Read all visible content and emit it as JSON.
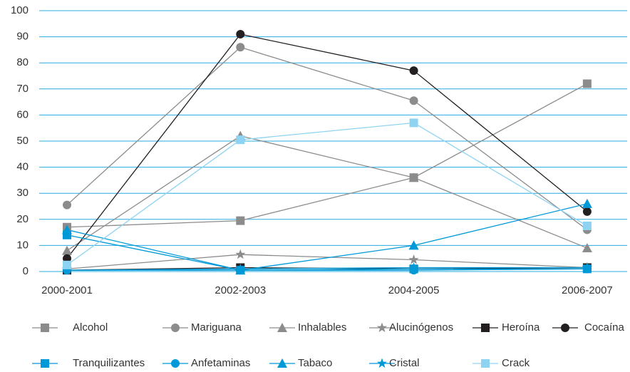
{
  "chart_data": {
    "type": "line",
    "categories": [
      "2000-2001",
      "2002-2003",
      "2004-2005",
      "2006-2007"
    ],
    "ylim": [
      0,
      100
    ],
    "yticks": [
      0,
      10,
      20,
      30,
      40,
      50,
      60,
      70,
      80,
      90,
      100
    ],
    "grid": true,
    "series": [
      {
        "name": "Alcohol",
        "color": "#8c8c8c",
        "marker": "square",
        "values": [
          17,
          19.5,
          36,
          72
        ]
      },
      {
        "name": "Mariguana",
        "color": "#8c8c8c",
        "marker": "circle",
        "values": [
          25.5,
          86,
          65.5,
          16
        ]
      },
      {
        "name": "Inhalables",
        "color": "#8c8c8c",
        "marker": "triangle",
        "values": [
          8,
          52,
          36,
          9
        ]
      },
      {
        "name": "Alucinógenos",
        "color": "#8c8c8c",
        "marker": "star",
        "values": [
          1,
          6.5,
          4.5,
          1.5
        ]
      },
      {
        "name": "Heroína",
        "color": "#231f20",
        "marker": "square",
        "values": [
          0.5,
          1.5,
          1,
          1.5
        ]
      },
      {
        "name": "Cocaína",
        "color": "#231f20",
        "marker": "circle",
        "values": [
          5,
          91,
          77,
          23
        ]
      },
      {
        "name": "Tranquilizantes",
        "color": "#0099d8",
        "marker": "square",
        "values": [
          14,
          0.5,
          1,
          1
        ]
      },
      {
        "name": "Anfetaminas",
        "color": "#0099d8",
        "marker": "circle",
        "values": [
          0.5,
          0.5,
          0.5,
          1
        ]
      },
      {
        "name": "Tabaco",
        "color": "#0099d8",
        "marker": "triangle",
        "values": [
          16,
          0.5,
          10,
          26
        ]
      },
      {
        "name": "Cristal",
        "color": "#0099d8",
        "marker": "star",
        "values": [
          0.5,
          1,
          1.5,
          1.5
        ]
      },
      {
        "name": "Crack",
        "color": "#8fd3f2",
        "marker": "square",
        "values": [
          2.5,
          50.5,
          57,
          17.5
        ]
      }
    ]
  }
}
